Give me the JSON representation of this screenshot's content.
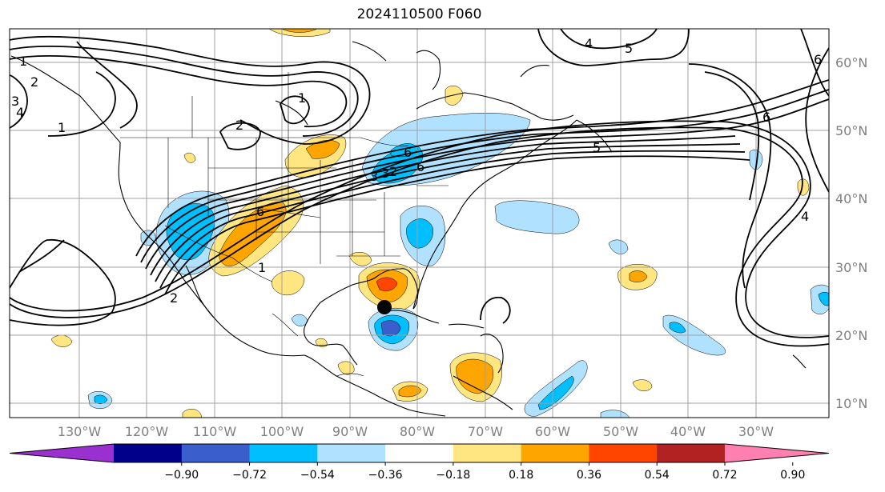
{
  "title": "2024110500 F060",
  "map": {
    "projection": "plate-carree",
    "lon_range": [
      -136,
      -14
    ],
    "lat_range": [
      8,
      65
    ],
    "grid": true,
    "lon_labels": [
      "130°W",
      "120°W",
      "110°W",
      "100°W",
      "90°W",
      "80°W",
      "70°W",
      "60°W",
      "50°W",
      "40°W",
      "30°W"
    ],
    "lat_labels": [
      "60°N",
      "50°N",
      "40°N",
      "30°N",
      "20°N",
      "10°N"
    ],
    "contour_labels": [
      "1",
      "2",
      "3",
      "4",
      "1",
      "1",
      "2",
      "1",
      "4",
      "5",
      "6",
      "6",
      "6",
      "2",
      "3",
      "6",
      "6",
      "5",
      "2",
      "3",
      "4"
    ],
    "marker": {
      "name": "storm-center",
      "lon": -85,
      "lat": 23.5
    }
  },
  "colorbar": {
    "ticks": [
      "−0.90",
      "−0.72",
      "−0.54",
      "−0.36",
      "−0.18",
      "0.18",
      "0.36",
      "0.54",
      "0.72",
      "0.90"
    ],
    "colors": [
      "#9b30d0",
      "#00008b",
      "#3a5fcd",
      "#00bfff",
      "#b0e2ff",
      "#ffffff",
      "#ffe680",
      "#ffa500",
      "#ff4500",
      "#b22222",
      "#ff7fb0"
    ]
  }
}
